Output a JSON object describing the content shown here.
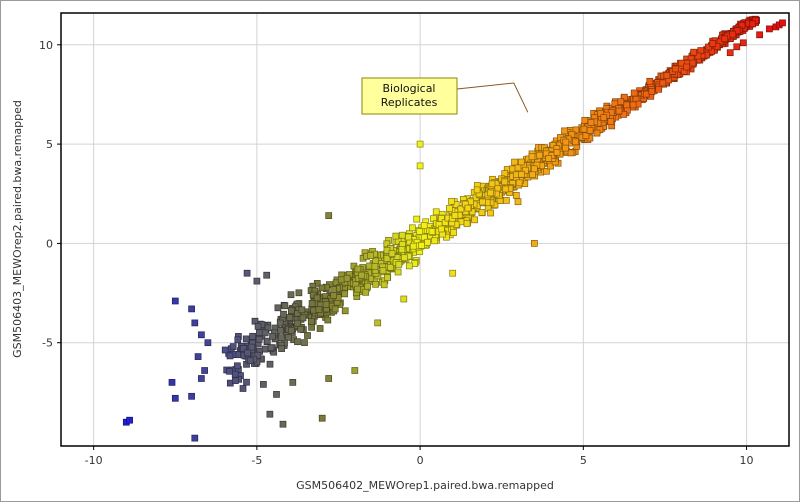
{
  "chart_data": {
    "type": "scatter",
    "xlabel": "GSM506402_MEWOrep1.paired.bwa.remapped",
    "ylabel": "GSM506403_MEWOrep2.paired.bwa.remapped",
    "xlim": [
      -11,
      11.3
    ],
    "ylim": [
      -10.2,
      11.6
    ],
    "x_ticks": [
      -10,
      -5,
      0,
      5,
      10
    ],
    "y_ticks": [
      -5,
      0,
      5,
      10
    ],
    "x_tick_labels": [
      "-10",
      "-5",
      "0",
      "5",
      "10"
    ],
    "y_tick_labels": [
      "-5",
      "0",
      "5",
      "10"
    ],
    "grid": true,
    "color_scale": {
      "variable": "x",
      "stops": [
        {
          "value": -9,
          "color": "#1f1fd6"
        },
        {
          "value": -3,
          "color": "#7a7a3a"
        },
        {
          "value": 0,
          "color": "#f2f21a"
        },
        {
          "value": 4,
          "color": "#f4a014"
        },
        {
          "value": 11,
          "color": "#e60f0f"
        }
      ]
    },
    "annotations": [
      {
        "text_lines": [
          "Biological",
          "Replicates"
        ],
        "point_to": [
          3.3,
          6.6
        ],
        "box_fill": "#ffff9c",
        "box_stroke": "#8a8a00"
      }
    ],
    "outlier_points": [
      [
        -9.0,
        -9.0
      ],
      [
        -8.9,
        -8.9
      ],
      [
        -7.6,
        -7.0
      ],
      [
        -7.5,
        -7.8
      ],
      [
        -7.0,
        -7.7
      ],
      [
        -6.9,
        -9.8
      ],
      [
        -7.5,
        -2.9
      ],
      [
        -7.0,
        -3.3
      ],
      [
        -6.9,
        -4.0
      ],
      [
        -6.8,
        -5.7
      ],
      [
        -6.7,
        -6.8
      ],
      [
        -6.6,
        -6.4
      ],
      [
        -6.7,
        -4.6
      ],
      [
        -6.5,
        -5.0
      ],
      [
        -5.3,
        -1.5
      ],
      [
        -5.0,
        -1.9
      ],
      [
        -4.7,
        -1.6
      ],
      [
        -2.8,
        1.4
      ],
      [
        -4.6,
        -8.6
      ],
      [
        -4.2,
        -9.1
      ],
      [
        -3.0,
        -8.8
      ],
      [
        -4.8,
        -7.1
      ],
      [
        0.0,
        5.0
      ],
      [
        0.0,
        3.9
      ],
      [
        3.5,
        0.0
      ],
      [
        3.1,
        4.1
      ],
      [
        3.0,
        3.8
      ],
      [
        3.0,
        2.1
      ],
      [
        -3.9,
        -7.0
      ],
      [
        -4.4,
        -7.6
      ],
      [
        -1.3,
        -4.0
      ],
      [
        -0.5,
        -2.8
      ],
      [
        -2.0,
        -6.4
      ],
      [
        -2.8,
        -6.8
      ],
      [
        1.0,
        -1.5
      ],
      [
        10.7,
        10.8
      ],
      [
        10.9,
        10.9
      ],
      [
        11.0,
        11.0
      ],
      [
        11.1,
        11.1
      ],
      [
        10.4,
        10.5
      ],
      [
        9.9,
        10.1
      ],
      [
        9.7,
        9.9
      ],
      [
        9.5,
        9.6
      ]
    ],
    "bulk_cloud": {
      "count": 1500,
      "seed": 7,
      "x_range": [
        -6.0,
        10.5
      ],
      "relation": "y ≈ 1.08·x + 0.2 with spread decreasing from about 1.6 at low x to 0.2 at high x"
    }
  }
}
